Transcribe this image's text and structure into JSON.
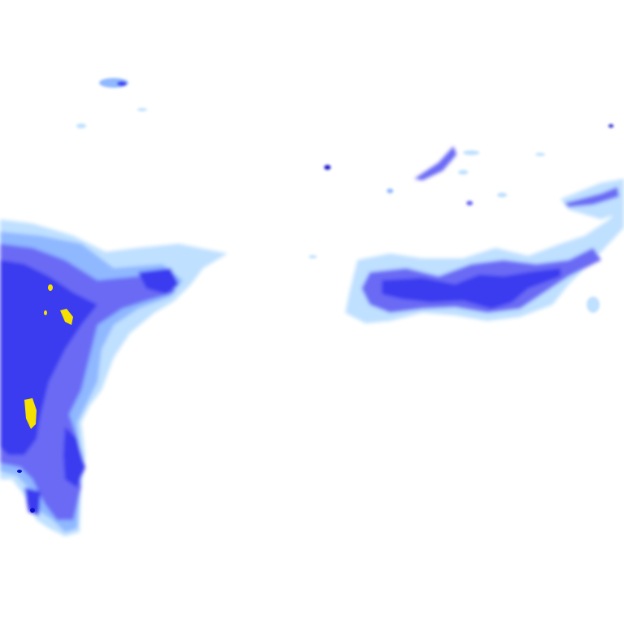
{
  "map": {
    "type": "precipitation-radar-tile",
    "intensity_colors": {
      "light": "#bfe0ff",
      "light_medium": "#8fb8ff",
      "medium": "#6a6af5",
      "heavy": "#3b3bf0",
      "very_heavy": "#1010c8",
      "extreme": "#f5e000"
    }
  }
}
